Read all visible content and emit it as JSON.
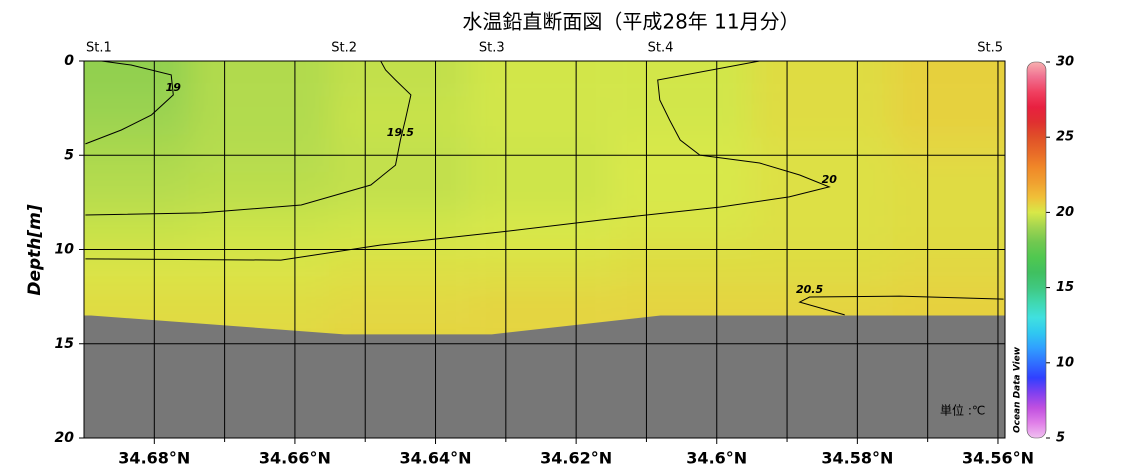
{
  "chart_data": {
    "type": "section",
    "title": "水温鉛直断面図（平成28年 11月分）",
    "ylabel": "Depth[m]",
    "unit_label": "単位 :℃",
    "watermark": "Ocean Data View",
    "xlim": [
      34.69,
      34.559
    ],
    "ylim": [
      0,
      20
    ],
    "xticks": [
      {
        "value": 34.68,
        "label": "34.68°N"
      },
      {
        "value": 34.66,
        "label": "34.66°N"
      },
      {
        "value": 34.64,
        "label": "34.64°N"
      },
      {
        "value": 34.62,
        "label": "34.62°N"
      },
      {
        "value": 34.6,
        "label": "34.6°N"
      },
      {
        "value": 34.58,
        "label": "34.58°N"
      },
      {
        "value": 34.56,
        "label": "34.56°N"
      }
    ],
    "xminor_ticks": [
      34.67,
      34.65,
      34.63,
      34.61,
      34.59,
      34.57
    ],
    "yticks": [
      0,
      5,
      10,
      15,
      20
    ],
    "grid": true,
    "stations": {
      "names": [
        "St.1",
        "St.2",
        "St.3",
        "St.4",
        "St.5"
      ],
      "lat": [
        34.689,
        34.653,
        34.632,
        34.608,
        34.56
      ]
    },
    "field": {
      "lat": [
        34.685,
        34.665,
        34.645,
        34.625,
        34.605,
        34.585,
        34.565
      ],
      "depth": [
        1,
        3,
        5,
        7,
        9,
        11,
        13,
        15
      ],
      "values": [
        [
          18.7,
          19.3,
          19.6,
          19.9,
          19.9,
          20.3,
          20.6
        ],
        [
          18.9,
          19.3,
          19.7,
          19.9,
          19.9,
          20.3,
          20.6
        ],
        [
          19.2,
          19.4,
          19.6,
          19.8,
          20.0,
          20.2,
          20.4
        ],
        [
          19.4,
          19.5,
          19.6,
          19.8,
          20.0,
          20.2,
          20.3
        ],
        [
          19.7,
          19.8,
          19.9,
          20.0,
          20.1,
          20.2,
          20.3
        ],
        [
          20.1,
          20.1,
          20.2,
          20.2,
          20.3,
          20.3,
          20.4
        ],
        [
          20.3,
          20.3,
          20.4,
          20.5,
          20.5,
          20.5,
          20.6
        ],
        [
          20.4,
          20.4,
          20.5,
          20.5,
          20.6,
          20.6,
          20.6
        ]
      ]
    },
    "contours": [
      {
        "level": 19,
        "lat": [
          34.6898,
          34.6847,
          34.6804,
          34.6773,
          34.6776,
          34.6833,
          34.6875
        ],
        "depth": [
          4.4,
          3.66,
          2.86,
          1.8,
          0.74,
          0.21,
          0
        ]
      },
      {
        "level": 19.5,
        "lat": [
          34.6898,
          34.6733,
          34.6591,
          34.6492,
          34.6457,
          34.645,
          34.6443,
          34.6435,
          34.6457,
          34.6471,
          34.6478
        ],
        "depth": [
          8.17,
          8.06,
          7.64,
          6.58,
          5.52,
          4.19,
          3.13,
          1.8,
          1.01,
          0.48,
          0
        ]
      },
      {
        "level": 20,
        "lat": [
          34.6898,
          34.662,
          34.6478,
          34.6308,
          34.6166,
          34.5996,
          34.5897,
          34.584,
          34.5882,
          34.5939,
          34.6024,
          34.6052,
          34.6067,
          34.6081,
          34.6084,
          34.5939
        ],
        "depth": [
          10.5,
          10.56,
          9.76,
          9.07,
          8.44,
          7.75,
          7.21,
          6.68,
          6.05,
          5.41,
          4.99,
          4.19,
          3.13,
          2.07,
          1.01,
          0
        ]
      },
      {
        "level": 20.5,
        "lat": [
          34.5592,
          34.574,
          34.5868,
          34.5882,
          34.5818
        ],
        "depth": [
          12.63,
          12.47,
          12.52,
          12.79,
          13.47
        ]
      }
    ],
    "contour_color": "#000000",
    "bottom": {
      "lat": [
        34.689,
        34.653,
        34.632,
        34.608,
        34.56
      ],
      "depth": [
        13.5,
        14.5,
        14.5,
        13.5,
        13.5
      ],
      "color": "#777777"
    },
    "colorbar": {
      "clim": [
        5,
        30
      ],
      "ticks": [
        5,
        10,
        15,
        20,
        25,
        30
      ],
      "colormap": [
        "#f0c0f0",
        "#e080e8",
        "#c050e0",
        "#8040f0",
        "#3040ff",
        "#3070ff",
        "#30a0ff",
        "#30c8f0",
        "#40e0e0",
        "#40d8b0",
        "#40c880",
        "#40c060",
        "#50c850",
        "#70c850",
        "#a0d450",
        "#d8e848",
        "#f0c038",
        "#f0a030",
        "#f08828",
        "#e86a28",
        "#e05028",
        "#e03030",
        "#e82040",
        "#f04060",
        "#f07090",
        "#f8b0b0"
      ]
    }
  }
}
